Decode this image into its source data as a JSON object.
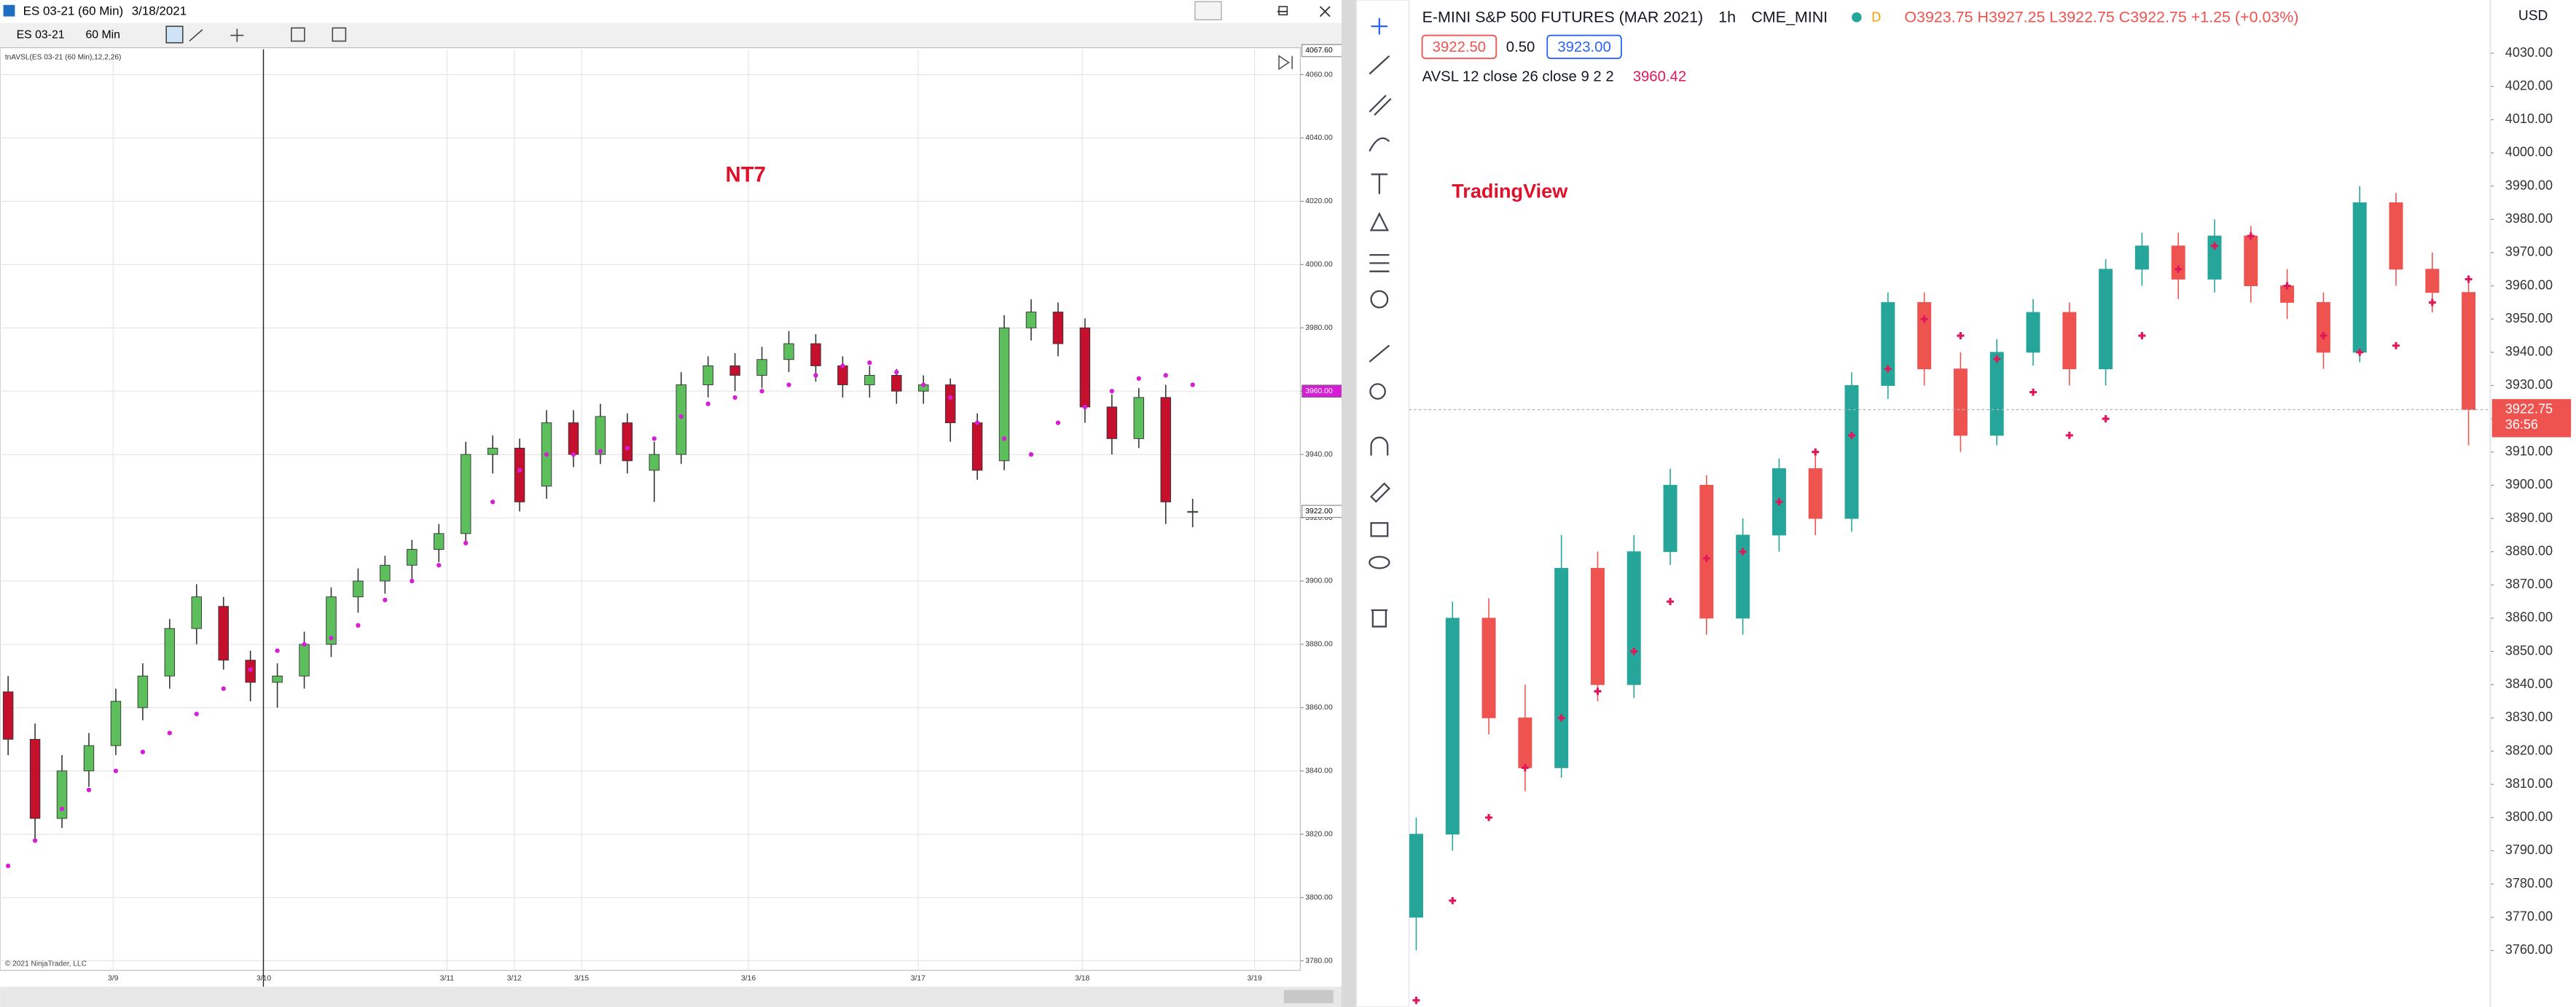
{
  "left_window": {
    "title_symbol": "ES 03-21 (60 Min)",
    "title_date": "3/18/2021",
    "toolbar_symbol": "ES 03-21",
    "toolbar_interval": "60 Min",
    "copyright": "© 2021 NinjaTrader, LLC"
  },
  "right_window": {
    "symbol": "E-MINI S&P 500 FUTURES (MAR 2021)",
    "interval": "1h",
    "exchange": "CME_MINI",
    "badge": "D",
    "ohlc": "O3923.75 H3927.25 L3922.75 C3922.75 +1.25 (+0.03%)",
    "sell": "3922.50",
    "spread": "0.50",
    "buy": "3923.00",
    "currency": "USD"
  },
  "chart_data": [
    {
      "type": "candlestick",
      "annotation": "NT7",
      "annotation_color": "#e0102a",
      "grid": true,
      "up_color": "#5cbf5c",
      "down_color": "#c4102c",
      "xlim": [
        -0.3,
        48
      ],
      "ylim": [
        3777,
        4068
      ],
      "xticks": [
        {
          "value": 3.9,
          "label": "3/9"
        },
        {
          "value": 9.5,
          "label": "3/10"
        },
        {
          "value": 16.3,
          "label": "3/11"
        },
        {
          "value": 18.8,
          "label": "3/12"
        },
        {
          "value": 21.3,
          "label": "3/15"
        },
        {
          "value": 27.5,
          "label": "3/16"
        },
        {
          "value": 33.8,
          "label": "3/17"
        },
        {
          "value": 39.9,
          "label": "3/18"
        },
        {
          "value": 46.3,
          "label": "3/19"
        }
      ],
      "yticks": [
        {
          "value": 3780,
          "label": "3780.00"
        },
        {
          "value": 3800,
          "label": "3800.00"
        },
        {
          "value": 3820,
          "label": "3820.00"
        },
        {
          "value": 3840,
          "label": "3840.00"
        },
        {
          "value": 3860,
          "label": "3860.00"
        },
        {
          "value": 3880,
          "label": "3880.00"
        },
        {
          "value": 3900,
          "label": "3900.00"
        },
        {
          "value": 3920,
          "label": "3920.00"
        },
        {
          "value": 3940,
          "label": "3940.00"
        },
        {
          "value": 3960,
          "label": "3960.00"
        },
        {
          "value": 3980,
          "label": "3980.00"
        },
        {
          "value": 4000,
          "label": "4000.00"
        },
        {
          "value": 4020,
          "label": "4020.00"
        },
        {
          "value": 4040,
          "label": "4040.00"
        },
        {
          "value": 4060,
          "label": "4060.00"
        }
      ],
      "ohlc": [
        [
          3865,
          3870,
          3845,
          3850
        ],
        [
          3850,
          3855,
          3818,
          3825
        ],
        [
          3825,
          3845,
          3822,
          3840
        ],
        [
          3840,
          3852,
          3835,
          3848
        ],
        [
          3848,
          3866,
          3845,
          3862
        ],
        [
          3860,
          3874,
          3856,
          3870
        ],
        [
          3870,
          3888,
          3866,
          3885
        ],
        [
          3885,
          3899,
          3880,
          3895
        ],
        [
          3892,
          3895,
          3872,
          3875
        ],
        [
          3875,
          3878,
          3862,
          3868
        ],
        [
          3868,
          3874,
          3860,
          3870
        ],
        [
          3870,
          3884,
          3866,
          3880
        ],
        [
          3880,
          3898,
          3876,
          3895
        ],
        [
          3895,
          3904,
          3890,
          3900
        ],
        [
          3900,
          3908,
          3896,
          3905
        ],
        [
          3905,
          3913,
          3900,
          3910
        ],
        [
          3910,
          3918,
          3906,
          3915
        ],
        [
          3915,
          3944,
          3912,
          3940
        ],
        [
          3940,
          3946,
          3934,
          3942
        ],
        [
          3942,
          3945,
          3922,
          3925
        ],
        [
          3930,
          3954,
          3926,
          3950
        ],
        [
          3950,
          3954,
          3936,
          3940
        ],
        [
          3940,
          3956,
          3937,
          3952
        ],
        [
          3950,
          3953,
          3934,
          3938
        ],
        [
          3935,
          3944,
          3925,
          3940
        ],
        [
          3940,
          3966,
          3937,
          3962
        ],
        [
          3962,
          3971,
          3958,
          3968
        ],
        [
          3968,
          3972,
          3960,
          3965
        ],
        [
          3965,
          3974,
          3961,
          3970
        ],
        [
          3970,
          3979,
          3966,
          3975
        ],
        [
          3975,
          3978,
          3963,
          3968
        ],
        [
          3968,
          3971,
          3958,
          3962
        ],
        [
          3962,
          3968,
          3958,
          3965
        ],
        [
          3965,
          3967,
          3956,
          3960
        ],
        [
          3960,
          3965,
          3956,
          3962
        ],
        [
          3962,
          3964,
          3944,
          3950
        ],
        [
          3950,
          3953,
          3932,
          3935
        ],
        [
          3938,
          3984,
          3935,
          3980
        ],
        [
          3980,
          3989,
          3976,
          3985
        ],
        [
          3985,
          3988,
          3971,
          3975
        ],
        [
          3980,
          3983,
          3950,
          3955
        ],
        [
          3955,
          3959,
          3940,
          3945
        ],
        [
          3945,
          3961,
          3942,
          3958
        ],
        [
          3958,
          3962,
          3918,
          3925
        ],
        [
          3922,
          3926,
          3917,
          3922
        ]
      ],
      "series": [
        {
          "name": "tnAVSL(ES 03-21 (60 Min),12,2,26)",
          "color": "#d61ed6",
          "marker": "dot",
          "values": [
            3810,
            3818,
            3828,
            3834,
            3840,
            3846,
            3852,
            3858,
            3866,
            3872,
            3878,
            3880,
            3882,
            3886,
            3894,
            3900,
            3905,
            3912,
            3925,
            3935,
            3940,
            3940,
            3941,
            3942,
            3945,
            3952,
            3956,
            3958,
            3960,
            3962,
            3965,
            3968,
            3969,
            3966,
            3962,
            3958,
            3950,
            3945,
            3940,
            3950,
            3955,
            3960,
            3964,
            3965,
            3962
          ]
        }
      ],
      "price_markers": [
        {
          "value": 4067.6,
          "label": "4067.60",
          "color": "#ffffff",
          "text_color": "#000000"
        },
        {
          "value": 3960,
          "label": "3960.00",
          "color": "#d61ed6",
          "text_color": "#ffffff"
        },
        {
          "value": 3922,
          "label": "3922.00",
          "color": "#ffffff",
          "text_color": "#000000"
        }
      ]
    },
    {
      "type": "candlestick",
      "annotation": "TradingView",
      "annotation_color": "#e0102a",
      "grid": false,
      "up_color": "#26a69a",
      "down_color": "#ef5350",
      "xlim": [
        -0.2,
        29.6
      ],
      "ylim": [
        3743,
        4046
      ],
      "yticks": [
        {
          "value": 3760,
          "label": "3760.00"
        },
        {
          "value": 3770,
          "label": "3770.00"
        },
        {
          "value": 3780,
          "label": "3780.00"
        },
        {
          "value": 3790,
          "label": "3790.00"
        },
        {
          "value": 3800,
          "label": "3800.00"
        },
        {
          "value": 3810,
          "label": "3810.00"
        },
        {
          "value": 3820,
          "label": "3820.00"
        },
        {
          "value": 3830,
          "label": "3830.00"
        },
        {
          "value": 3840,
          "label": "3840.00"
        },
        {
          "value": 3850,
          "label": "3850.00"
        },
        {
          "value": 3860,
          "label": "3860.00"
        },
        {
          "value": 3870,
          "label": "3870.00"
        },
        {
          "value": 3880,
          "label": "3880.00"
        },
        {
          "value": 3890,
          "label": "3890.00"
        },
        {
          "value": 3900,
          "label": "3900.00"
        },
        {
          "value": 3910,
          "label": "3910.00"
        },
        {
          "value": 3920,
          "label": "3920.00"
        },
        {
          "value": 3930,
          "label": "3930.00"
        },
        {
          "value": 3940,
          "label": "3940.00"
        },
        {
          "value": 3950,
          "label": "3950.00"
        },
        {
          "value": 3960,
          "label": "3960.00"
        },
        {
          "value": 3970,
          "label": "3970.00"
        },
        {
          "value": 3980,
          "label": "3980.00"
        },
        {
          "value": 3990,
          "label": "3990.00"
        },
        {
          "value": 4000,
          "label": "4000.00"
        },
        {
          "value": 4010,
          "label": "4010.00"
        },
        {
          "value": 4020,
          "label": "4020.00"
        },
        {
          "value": 4030,
          "label": "4030.00"
        }
      ],
      "ohlc": [
        [
          3770,
          3800,
          3760,
          3795
        ],
        [
          3795,
          3865,
          3790,
          3860
        ],
        [
          3860,
          3866,
          3825,
          3830
        ],
        [
          3830,
          3840,
          3808,
          3815
        ],
        [
          3815,
          3885,
          3812,
          3875
        ],
        [
          3875,
          3880,
          3835,
          3840
        ],
        [
          3840,
          3885,
          3836,
          3880
        ],
        [
          3880,
          3905,
          3876,
          3900
        ],
        [
          3900,
          3903,
          3855,
          3860
        ],
        [
          3860,
          3890,
          3855,
          3885
        ],
        [
          3885,
          3908,
          3880,
          3905
        ],
        [
          3905,
          3910,
          3885,
          3890
        ],
        [
          3890,
          3934,
          3886,
          3930
        ],
        [
          3930,
          3958,
          3926,
          3955
        ],
        [
          3955,
          3958,
          3930,
          3935
        ],
        [
          3935,
          3940,
          3910,
          3915
        ],
        [
          3915,
          3944,
          3912,
          3940
        ],
        [
          3940,
          3956,
          3936,
          3952
        ],
        [
          3952,
          3955,
          3930,
          3935
        ],
        [
          3935,
          3968,
          3930,
          3965
        ],
        [
          3965,
          3976,
          3960,
          3972
        ],
        [
          3972,
          3976,
          3956,
          3962
        ],
        [
          3962,
          3980,
          3958,
          3975
        ],
        [
          3975,
          3978,
          3955,
          3960
        ],
        [
          3960,
          3965,
          3950,
          3955
        ],
        [
          3955,
          3958,
          3935,
          3940
        ],
        [
          3940,
          3990,
          3937,
          3985
        ],
        [
          3985,
          3988,
          3960,
          3965
        ],
        [
          3965,
          3970,
          3952,
          3958
        ],
        [
          3958,
          3962,
          3912,
          3922.75
        ]
      ],
      "series": [
        {
          "name": "AVSL 12 close 26 close 9 2 2",
          "legend_value": 3960.42,
          "color": "#e0185a",
          "marker": "cross",
          "values": [
            3745,
            3775,
            3800,
            3815,
            3830,
            3838,
            3850,
            3865,
            3878,
            3880,
            3895,
            3910,
            3915,
            3935,
            3950,
            3945,
            3938,
            3928,
            3915,
            3920,
            3945,
            3965,
            3972,
            3975,
            3960,
            3945,
            3940,
            3942,
            3955,
            3962
          ]
        }
      ],
      "price_markers": [
        {
          "value": 3922.75,
          "label": "3922.75",
          "sub": "36:56",
          "color": "#ef5350",
          "text_color": "#ffffff"
        }
      ]
    }
  ]
}
